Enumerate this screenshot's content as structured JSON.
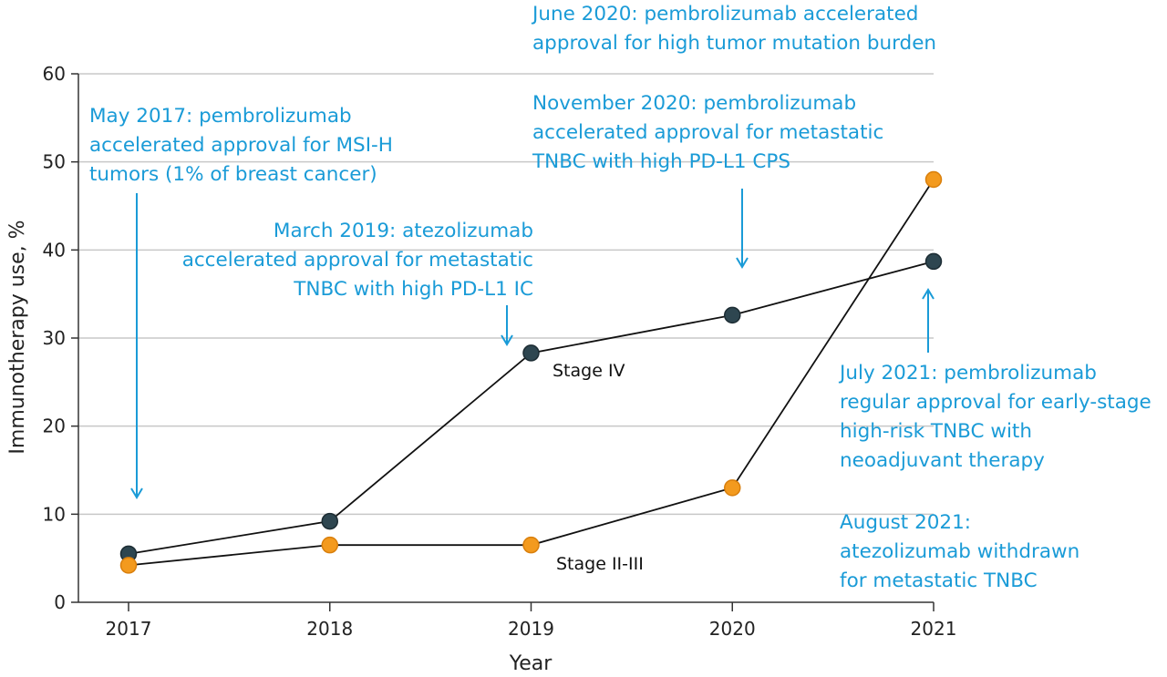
{
  "chart_data": {
    "type": "line",
    "xlabel": "Year",
    "ylabel": "Immunotherapy use, %",
    "categories": [
      "2017",
      "2018",
      "2019",
      "2020",
      "2021"
    ],
    "ylim": [
      0,
      60
    ],
    "yticks": [
      0,
      10,
      20,
      30,
      40,
      50,
      60
    ],
    "grid": true,
    "series": [
      {
        "name": "Stage IV",
        "values": [
          5.5,
          9.2,
          28.3,
          32.6,
          38.7
        ],
        "color": "#2e4650"
      },
      {
        "name": "Stage II-III",
        "values": [
          4.2,
          6.5,
          6.5,
          13.0,
          48.0
        ],
        "color": "#f39a1e"
      }
    ],
    "annotation_color": "#1a9bd7",
    "annotations": {
      "may2017": [
        "May 2017: pembrolizumab",
        "accelerated approval for MSI-H",
        "tumors (1% of breast cancer)"
      ],
      "mar2019": [
        "March 2019: atezolizumab",
        "accelerated approval for metastatic",
        "TNBC with high PD-L1 IC"
      ],
      "jun2020": [
        "June 2020: pembrolizumab accelerated",
        "approval for high tumor mutation burden"
      ],
      "nov2020": [
        "November 2020: pembrolizumab",
        "accelerated approval for metastatic",
        "TNBC with high PD-L1 CPS"
      ],
      "jul2021": [
        "July 2021: pembrolizumab",
        "regular approval for early-stage",
        "high-risk TNBC with",
        "neoadjuvant therapy"
      ],
      "aug2021": [
        "August 2021:",
        "atezolizumab withdrawn",
        "for metastatic TNBC"
      ]
    }
  }
}
